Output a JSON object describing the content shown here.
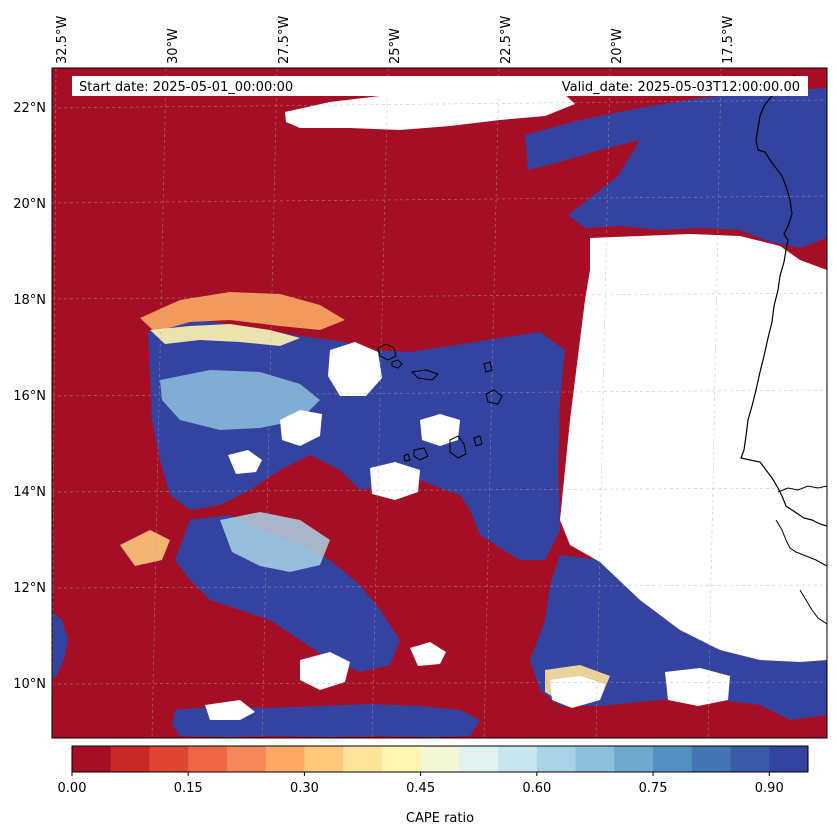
{
  "map": {
    "start_label": "Start date: 2025-05-01_00:00:00",
    "valid_label": "Valid_date: 2025-05-03T12:00:00.00",
    "lon_ticks": [
      "32.5°W",
      "30°W",
      "27.5°W",
      "25°W",
      "22.5°W",
      "20°W",
      "17.5°W"
    ],
    "lat_ticks": [
      "22°N",
      "20°N",
      "18°N",
      "16°N",
      "14°N",
      "12°N",
      "10°N"
    ]
  },
  "colorbar": {
    "label": "CAPE ratio",
    "tick_labels": [
      "0.00",
      "0.15",
      "0.30",
      "0.45",
      "0.60",
      "0.75",
      "0.90"
    ],
    "levels": 20,
    "colors": [
      "#a50f26",
      "#c62a27",
      "#dd4631",
      "#ee6644",
      "#f6875a",
      "#fba964",
      "#fdc87c",
      "#fee39a",
      "#fef5b1",
      "#f3f9d6",
      "#e2f2f0",
      "#c9e6ef",
      "#a9d3e6",
      "#8dbfdc",
      "#70a8ce",
      "#5490c1",
      "#4476b3",
      "#3a5ca8",
      "#3443a0"
    ]
  },
  "legend_colors": {
    "low": "#a50f26",
    "high": "#3443a0",
    "missing": "#ffffff",
    "coast": "#000000"
  }
}
